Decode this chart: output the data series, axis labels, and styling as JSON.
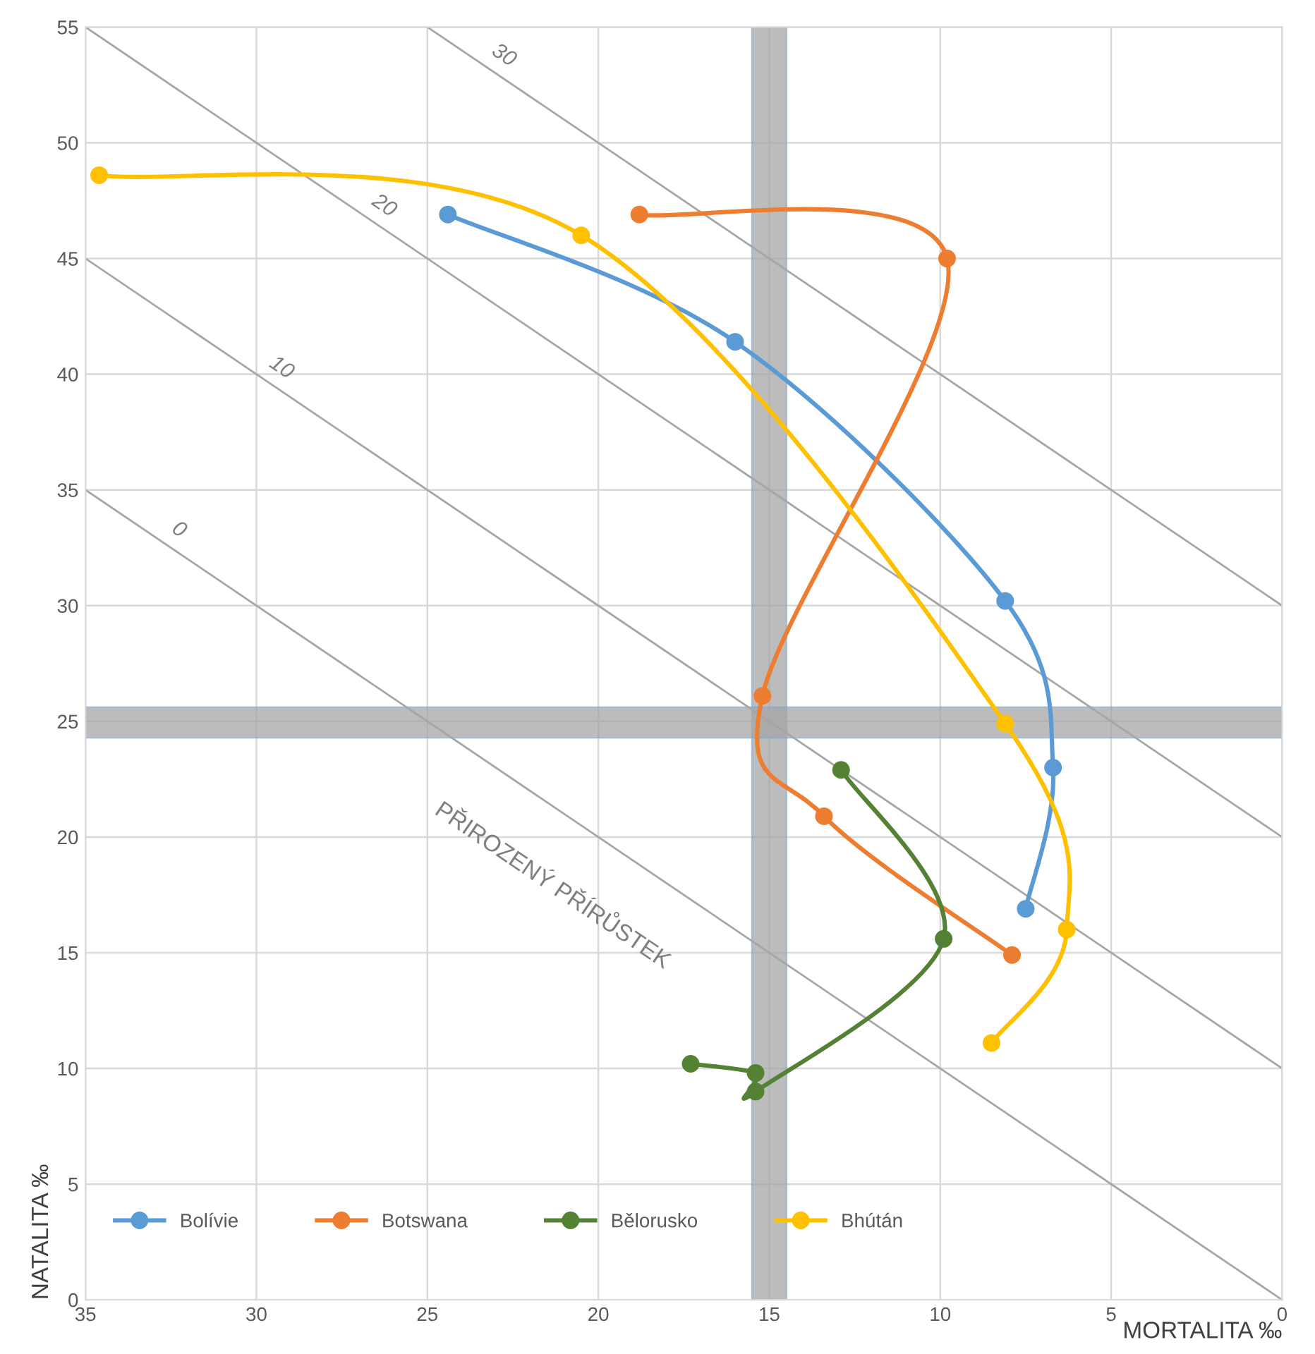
{
  "chart_data": {
    "type": "line",
    "xlabel": "MORTALITA ‰",
    "ylabel": "NATALITA ‰",
    "xlim": [
      35,
      0
    ],
    "ylim": [
      0,
      55
    ],
    "xticks": [
      35,
      30,
      25,
      20,
      15,
      10,
      5,
      0
    ],
    "yticks": [
      0,
      5,
      10,
      15,
      20,
      25,
      30,
      35,
      40,
      45,
      50,
      55
    ],
    "grid": true,
    "legend": "bottom left",
    "marker": "circle",
    "line_style": "solid",
    "series": [
      {
        "name": "Bolívie",
        "color": "#5b9bd5",
        "x": [
          24.4,
          16.0,
          8.1,
          6.7,
          7.5
        ],
        "values": [
          46.9,
          41.4,
          30.2,
          23.0,
          16.9
        ]
      },
      {
        "name": "Botswana",
        "color": "#ed7d31",
        "x": [
          18.8,
          9.8,
          15.2,
          13.4,
          7.9
        ],
        "values": [
          46.9,
          45.0,
          26.1,
          20.9,
          14.9
        ]
      },
      {
        "name": "Bělorusko",
        "color": "#548235",
        "x": [
          12.9,
          9.9,
          15.4,
          15.4,
          17.3
        ],
        "values": [
          22.9,
          15.6,
          9.0,
          9.8,
          10.2
        ]
      },
      {
        "name": "Bhútán",
        "color": "#ffc000",
        "x": [
          34.6,
          20.5,
          8.1,
          6.3,
          8.5
        ],
        "values": [
          48.6,
          46.0,
          24.9,
          16.0,
          11.1
        ]
      },
      {
        "color": "#a6a6a6",
        "marker": "none",
        "x": [
          35,
          0
        ],
        "values": [
          35,
          0
        ]
      },
      {
        "color": "#a6a6a6",
        "marker": "none",
        "x": [
          35,
          0
        ],
        "values": [
          45,
          10
        ]
      },
      {
        "color": "#a6a6a6",
        "marker": "none",
        "x": [
          35,
          0
        ],
        "values": [
          55,
          20
        ]
      },
      {
        "color": "#a6a6a6",
        "marker": "none",
        "x": [
          25,
          0
        ],
        "values": [
          55,
          30
        ]
      }
    ],
    "bands": [
      {
        "axis": "x",
        "from": 15.5,
        "to": 14.5,
        "color": "#a6a6a6"
      },
      {
        "axis": "y",
        "from": 24.3,
        "to": 25.6,
        "color": "#a6a6a6"
      }
    ],
    "annotations": [
      {
        "text": "0",
        "x": 32.5,
        "y": 32.5
      },
      {
        "text": "10",
        "x": 29.5,
        "y": 39.5
      },
      {
        "text": "20",
        "x": 26.5,
        "y": 46.5
      },
      {
        "text": "30",
        "x": 23,
        "y": 53
      },
      "PŘIROZENÝ PŘÍRŮSTEK"
    ]
  }
}
